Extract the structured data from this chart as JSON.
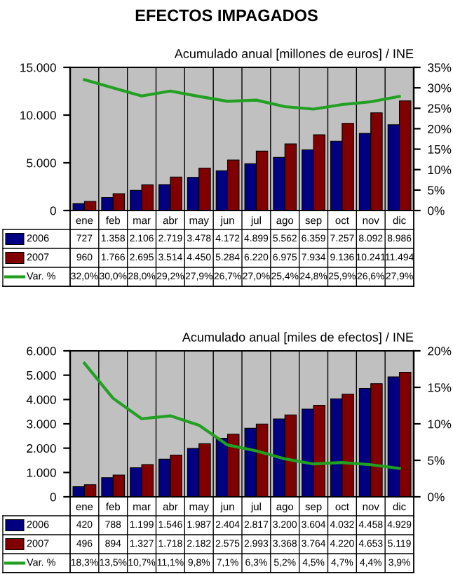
{
  "chart_data": [
    {
      "type": "bar",
      "title": "EFECTOS IMPAGADOS",
      "subtitle": "Acumulado anual [millones de euros] / INE",
      "categories": [
        "ene",
        "feb",
        "mar",
        "abr",
        "may",
        "jun",
        "jul",
        "ago",
        "sep",
        "oct",
        "nov",
        "dic"
      ],
      "series": [
        {
          "name": "2006",
          "color": "#000080",
          "values": [
            727,
            1358,
            2106,
            2719,
            3478,
            4172,
            4899,
            5562,
            6359,
            7257,
            8092,
            8986
          ],
          "value_labels": [
            "727",
            "1.358",
            "2.106",
            "2.719",
            "3.478",
            "4.172",
            "4.899",
            "5.562",
            "6.359",
            "7.257",
            "8.092",
            "8.986"
          ]
        },
        {
          "name": "2007",
          "color": "#800000",
          "values": [
            960,
            1766,
            2695,
            3514,
            4450,
            5284,
            6220,
            6975,
            7934,
            9136,
            10241,
            11494
          ],
          "value_labels": [
            "960",
            "1.766",
            "2.695",
            "3.514",
            "4.450",
            "5.284",
            "6.220",
            "6.975",
            "7.934",
            "9.136",
            "10.241",
            "11.494"
          ]
        },
        {
          "name": "Var. %",
          "type": "line",
          "axis": "y2",
          "color": "#22a022",
          "values": [
            32.0,
            30.0,
            28.0,
            29.2,
            27.9,
            26.7,
            27.0,
            25.4,
            24.8,
            25.9,
            26.6,
            27.9
          ],
          "value_labels": [
            "32,0%",
            "30,0%",
            "28,0%",
            "29,2%",
            "27,9%",
            "26,7%",
            "27,0%",
            "25,4%",
            "24,8%",
            "25,9%",
            "26,6%",
            "27,9%"
          ]
        }
      ],
      "ylim": [
        0,
        15000
      ],
      "yticks": [
        0,
        {
          "value": 5000,
          "label": "5.000"
        },
        {
          "value": 10000,
          "label": "10.000"
        },
        {
          "value": 15000,
          "label": "15.000"
        }
      ],
      "legend": "left",
      "y2lim": [
        0,
        35
      ],
      "y2ticks": [
        {
          "value": 0,
          "label": "0%"
        },
        {
          "value": 5,
          "label": "5%"
        },
        {
          "value": 10,
          "label": "10%"
        },
        {
          "value": 15,
          "label": "15%"
        },
        {
          "value": 20,
          "label": "20%"
        },
        {
          "value": 25,
          "label": "25%"
        },
        {
          "value": 30,
          "label": "30%"
        },
        {
          "value": 35,
          "label": "35%"
        }
      ],
      "grid": "x"
    },
    {
      "type": "bar",
      "subtitle": "Acumulado anual [miles de efectos] / INE",
      "categories": [
        "ene",
        "feb",
        "mar",
        "abr",
        "may",
        "jun",
        "jul",
        "ago",
        "sep",
        "oct",
        "nov",
        "dic"
      ],
      "series": [
        {
          "name": "2006",
          "color": "#000080",
          "values": [
            420,
            788,
            1199,
            1546,
            1987,
            2404,
            2817,
            3200,
            3604,
            4032,
            4458,
            4929
          ],
          "value_labels": [
            "420",
            "788",
            "1.199",
            "1.546",
            "1.987",
            "2.404",
            "2.817",
            "3.200",
            "3.604",
            "4.032",
            "4.458",
            "4.929"
          ]
        },
        {
          "name": "2007",
          "color": "#800000",
          "values": [
            496,
            894,
            1327,
            1718,
            2182,
            2575,
            2993,
            3368,
            3764,
            4220,
            4653,
            5119
          ],
          "value_labels": [
            "496",
            "894",
            "1.327",
            "1.718",
            "2.182",
            "2.575",
            "2.993",
            "3.368",
            "3.764",
            "4.220",
            "4.653",
            "5.119"
          ]
        },
        {
          "name": "Var. %",
          "type": "line",
          "axis": "y2",
          "color": "#22a022",
          "values": [
            18.3,
            13.5,
            10.7,
            11.1,
            9.8,
            7.1,
            6.3,
            5.2,
            4.5,
            4.7,
            4.4,
            3.9
          ],
          "value_labels": [
            "18,3%",
            "13,5%",
            "10,7%",
            "11,1%",
            "9,8%",
            "7,1%",
            "6,3%",
            "5,2%",
            "4,5%",
            "4,7%",
            "4,4%",
            "3,9%"
          ]
        }
      ],
      "ylim": [
        0,
        6000
      ],
      "yticks": [
        0,
        {
          "value": 1000,
          "label": "1.000"
        },
        {
          "value": 2000,
          "label": "2.000"
        },
        {
          "value": 3000,
          "label": "3.000"
        },
        {
          "value": 4000,
          "label": "4.000"
        },
        {
          "value": 5000,
          "label": "5.000"
        },
        {
          "value": 6000,
          "label": "6.000"
        }
      ],
      "legend": "left",
      "y2lim": [
        0,
        20
      ],
      "y2ticks": [
        {
          "value": 0,
          "label": "0%"
        },
        {
          "value": 5,
          "label": "5%"
        },
        {
          "value": 10,
          "label": "10%"
        },
        {
          "value": 15,
          "label": "15%"
        },
        {
          "value": 20,
          "label": "20%"
        }
      ],
      "grid": "x"
    }
  ]
}
